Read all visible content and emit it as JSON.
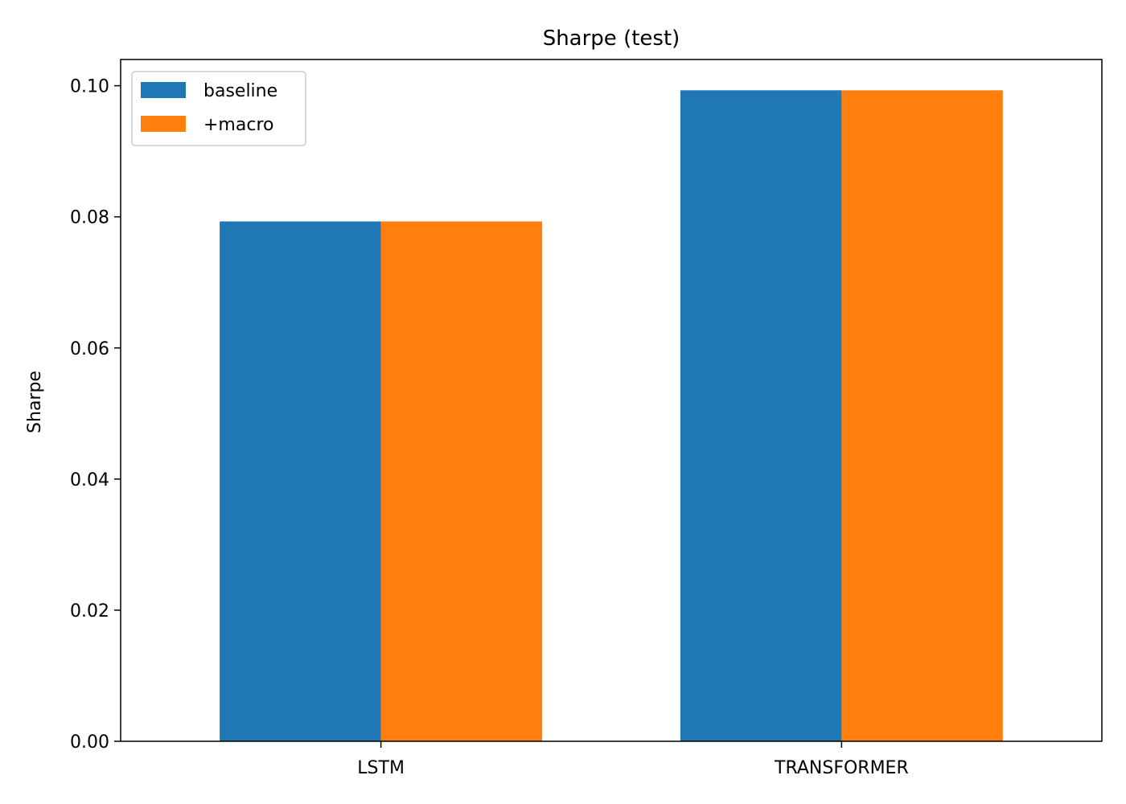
{
  "chart_data": {
    "type": "bar",
    "title": "Sharpe (test)",
    "xlabel": "",
    "ylabel": "Sharpe",
    "categories": [
      "LSTM",
      "TRANSFORMER"
    ],
    "series": [
      {
        "name": "baseline",
        "color": "#1f77b4",
        "values": [
          0.0793,
          0.0993
        ]
      },
      {
        "name": "+macro",
        "color": "#ff7f0e",
        "values": [
          0.0793,
          0.0993
        ]
      }
    ],
    "ylim": [
      0,
      0.104
    ],
    "yticks": [
      0.0,
      0.02,
      0.04,
      0.06,
      0.08,
      0.1
    ],
    "ytick_labels": [
      "0.00",
      "0.02",
      "0.04",
      "0.06",
      "0.08",
      "0.10"
    ],
    "grid": false,
    "legend_position": "top-left"
  }
}
